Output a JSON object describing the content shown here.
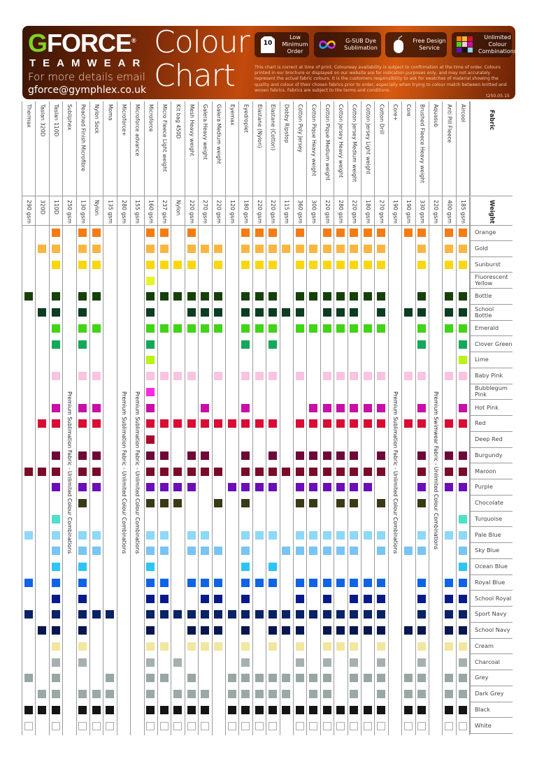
{
  "header": {
    "logo": {
      "g": "G",
      "rest": "FORCE",
      "reg": "®",
      "sub": "TEAMWEAR"
    },
    "email_label": "For more details email",
    "email": "gforce@gymphlex.co.uk",
    "title_line1": "Colour",
    "title_line2": "Chart",
    "features": [
      {
        "icon": "shirt-10-icon",
        "icon_text": "10",
        "label": "Low Minimum Order"
      },
      {
        "icon": "infinity-icon",
        "label": "G-SUB Dye Sublimation"
      },
      {
        "icon": "mouse-icon",
        "label": "Free Design Service"
      },
      {
        "icon": "colour-grid-icon",
        "label": "Unlimited Colour Combinations"
      }
    ],
    "disclaimer": "This chart is correct at time of print. Colourway availability is subject to confirmation at the time of order. Colours printed in our brochure or displayed on our website are for indication purposes only, and may not accurately represent the actual fabric colours. It is the customers responsibility to ask for swatches of material showing the quality and colour of their chosen fabrics prior to order, especially when trying to colour match between knitted and woven fabrics. Fabrics are subject to the terms and conditions.",
    "code": "t250.05.15"
  },
  "table": {
    "fabric_header": "Fabric",
    "weight_header": "Weight",
    "fabrics": [
      {
        "name": "Thermax",
        "weight": "290 gsm"
      },
      {
        "name": "Taslan 320D",
        "weight": "320D"
      },
      {
        "name": "Taslan 110D",
        "weight": "110D"
      },
      {
        "name": "Subliphex",
        "weight": "250 gsm",
        "premium": "Premium Sublimation Fabric - Unlimited Colour Combinations"
      },
      {
        "name": "Peached Finish Microfibre",
        "weight": "130 gsm"
      },
      {
        "name": "Nylon Sock",
        "weight": "Nylon"
      },
      {
        "name": "Moma",
        "weight": "135 gsm"
      },
      {
        "name": "Microforce+",
        "weight": "280 gsm",
        "premium": "Premium Sublimation Fabric - Unlimited Colour Combinations"
      },
      {
        "name": "Microforce advance",
        "weight": "155 gsm",
        "premium": "Premium Sublimation Fabric - Unlimited Colour Combinations"
      },
      {
        "name": "Microforce",
        "weight": "160 gsm"
      },
      {
        "name": "Micro Fleece Light weight",
        "weight": "237 gsm"
      },
      {
        "name": "Kit bag 450D",
        "weight": "Nylon"
      },
      {
        "name": "Mesh Heavy weight",
        "weight": "220 gsm"
      },
      {
        "name": "Galera Heavy weight",
        "weight": "270 gsm"
      },
      {
        "name": "Galera Medium weight",
        "weight": "220 gsm"
      },
      {
        "name": "Eyemax",
        "weight": "120 gsm"
      },
      {
        "name": "Eyedroplet",
        "weight": "180 gsm"
      },
      {
        "name": "Elastane (Nylon)",
        "weight": "220 gsm"
      },
      {
        "name": "Elastane (Cotton)",
        "weight": "220 gsm"
      },
      {
        "name": "Dobby Ripstop",
        "weight": "115 gsm"
      },
      {
        "name": "Cotton Poly Jersey",
        "weight": "360 gsm"
      },
      {
        "name": "Cotton Pique Heavy weight",
        "weight": "300 gsm"
      },
      {
        "name": "Cotton Pique Medium weight",
        "weight": "220 gsm"
      },
      {
        "name": "Cotton Jersey Heavy weight",
        "weight": "280 gsm"
      },
      {
        "name": "Cotton Jersey Medium weight",
        "weight": "220 gsm"
      },
      {
        "name": "Cotton Jersey Light weight",
        "weight": "180 gsm"
      },
      {
        "name": "Cotton Drill",
        "weight": "270 gsm"
      },
      {
        "name": "Core+",
        "weight": "190 gsm",
        "premium": "Premium Sublimation Fabric - Unlimited Colour Combinations"
      },
      {
        "name": "Core",
        "weight": "190 gsm"
      },
      {
        "name": "Brushed Fleece Heavy weight",
        "weight": "330 gsm"
      },
      {
        "name": "Aquasub",
        "weight": "220 gsm",
        "premium": "Premium Swimwear Fabric - Unlimited Colour Combinations"
      },
      {
        "name": "Anti Pill Fleece",
        "weight": "400 gsm"
      },
      {
        "name": "Aircool",
        "weight": "185 gsm"
      }
    ],
    "colours": [
      {
        "name": "Orange",
        "hex": "#f57c12",
        "fabrics": [
          2,
          4,
          5,
          9,
          10,
          12,
          16,
          17,
          18,
          20,
          22,
          23,
          24,
          25,
          26,
          28,
          29,
          31,
          32
        ]
      },
      {
        "name": "Gold",
        "hex": "#fbb640",
        "fabrics": [
          1,
          2,
          4,
          5,
          9,
          10,
          12,
          13,
          14,
          16,
          17,
          18,
          19,
          20,
          21,
          22,
          23,
          24,
          25,
          26,
          29,
          31,
          32
        ]
      },
      {
        "name": "Sunburst",
        "hex": "#fbd712",
        "fabrics": [
          2,
          4,
          5,
          9,
          10,
          11,
          12,
          14,
          16,
          17,
          18,
          20,
          21,
          22,
          23,
          24,
          25,
          26,
          29,
          31,
          32
        ]
      },
      {
        "name": "Fluorescent Yellow",
        "hex": "#e6f52a",
        "fabrics": [
          9
        ]
      },
      {
        "name": "Bottle",
        "hex": "#16400a",
        "fabrics": [
          0,
          2,
          4,
          5,
          9,
          10,
          11,
          12,
          13,
          14,
          16,
          17,
          18,
          20,
          21,
          22,
          23,
          24,
          25,
          26,
          29,
          31,
          32
        ]
      },
      {
        "name": "School Bottle",
        "hex": "#0b3d22",
        "fabrics": [
          1,
          2,
          4,
          9,
          12,
          13,
          14,
          16,
          17,
          18,
          19,
          20,
          22,
          23,
          24,
          26,
          28,
          29,
          31,
          32
        ]
      },
      {
        "name": "Emerald",
        "hex": "#42d416",
        "fabrics": [
          2,
          4,
          5,
          9,
          10,
          11,
          12,
          13,
          14,
          16,
          17,
          18,
          20,
          21,
          22,
          23,
          24,
          25,
          26,
          29,
          31,
          32
        ]
      },
      {
        "name": "Clover Green",
        "hex": "#14a85a",
        "fabrics": [
          2,
          4,
          9,
          16,
          18,
          29,
          32
        ]
      },
      {
        "name": "Lime",
        "hex": "#b8f514",
        "fabrics": [
          9,
          32
        ]
      },
      {
        "name": "Baby Pink",
        "hex": "#f9c4e0",
        "fabrics": [
          2,
          4,
          5,
          9,
          10,
          11,
          12,
          14,
          16,
          17,
          18,
          20,
          22,
          23,
          24,
          25,
          26,
          28,
          29,
          31,
          32
        ]
      },
      {
        "name": "Bubblegum Pink",
        "hex": "#f72ee0",
        "fabrics": [
          9
        ]
      },
      {
        "name": "Hot Pink",
        "hex": "#c80fa8",
        "fabrics": [
          2,
          4,
          5,
          9,
          13,
          16,
          21,
          22,
          23,
          24,
          25,
          26,
          29,
          32
        ]
      },
      {
        "name": "Red",
        "hex": "#d80c34",
        "fabrics": [
          1,
          2,
          4,
          5,
          9,
          10,
          11,
          12,
          13,
          14,
          15,
          16,
          17,
          18,
          20,
          21,
          22,
          23,
          24,
          25,
          26,
          28,
          29,
          31,
          32
        ]
      },
      {
        "name": "Deep Red",
        "hex": "#a8082c",
        "fabrics": [
          9
        ]
      },
      {
        "name": "Burgundy",
        "hex": "#6e0838",
        "fabrics": [
          2,
          4,
          5,
          9,
          10,
          12,
          13,
          16,
          18,
          20,
          21,
          22,
          23,
          24,
          26,
          29,
          31,
          32
        ]
      },
      {
        "name": "Maroon",
        "hex": "#7a0a2a",
        "fabrics": [
          0,
          1,
          2,
          4,
          5,
          9,
          10,
          11,
          12,
          13,
          14,
          16,
          17,
          18,
          19,
          20,
          21,
          22,
          23,
          24,
          25,
          26,
          29,
          31,
          32
        ]
      },
      {
        "name": "Purple",
        "hex": "#6a0fb8",
        "fabrics": [
          2,
          4,
          5,
          9,
          10,
          11,
          12,
          15,
          16,
          17,
          18,
          20,
          21,
          22,
          23,
          24,
          25,
          29,
          31,
          32
        ]
      },
      {
        "name": "Chocolate",
        "hex": "#3a3a16",
        "fabrics": [
          4,
          9,
          10,
          11,
          14,
          16,
          20,
          21,
          23,
          24,
          26,
          29
        ]
      },
      {
        "name": "Turquoise",
        "hex": "#4ee0c8",
        "fabrics": [
          2,
          32
        ]
      },
      {
        "name": "Pale Blue",
        "hex": "#8ed8f8",
        "fabrics": [
          0,
          2,
          4,
          5,
          9,
          10,
          12,
          13,
          16,
          17,
          18,
          20,
          21,
          22,
          23,
          24,
          25,
          26,
          29,
          31,
          32
        ]
      },
      {
        "name": "Sky Blue",
        "hex": "#78c4f5",
        "fabrics": [
          2,
          4,
          5,
          9,
          10,
          12,
          13,
          14,
          16,
          19,
          20,
          21,
          22,
          23,
          24,
          26,
          28,
          29,
          32
        ]
      },
      {
        "name": "Ocean Blue",
        "hex": "#2ec4f5",
        "fabrics": [
          2,
          4,
          9,
          16,
          18,
          32
        ]
      },
      {
        "name": "Royal Blue",
        "hex": "#0f64e6",
        "fabrics": [
          0,
          2,
          4,
          9,
          10,
          12,
          13,
          14,
          16,
          17,
          18,
          20,
          21,
          22,
          23,
          24,
          25,
          26,
          29,
          31,
          32
        ]
      },
      {
        "name": "School Royal",
        "hex": "#081a8a",
        "fabrics": [
          2,
          4,
          9,
          10,
          13,
          14,
          16,
          20,
          22,
          24,
          25,
          26,
          29,
          31,
          32
        ]
      },
      {
        "name": "Sport Navy",
        "hex": "#0a2266",
        "fabrics": [
          0,
          2,
          4,
          5,
          6,
          9,
          10,
          11,
          12,
          13,
          14,
          15,
          16,
          17,
          18,
          19,
          20,
          21,
          22,
          23,
          24,
          25,
          26,
          29,
          31,
          32
        ]
      },
      {
        "name": "School Navy",
        "hex": "#061650",
        "fabrics": [
          1,
          2,
          4,
          9,
          12,
          13,
          14,
          16,
          18,
          19,
          20,
          22,
          23,
          24,
          25,
          26,
          28,
          29,
          31,
          32
        ]
      },
      {
        "name": "Cream",
        "hex": "#f2e6a0",
        "fabrics": [
          2,
          4,
          9,
          10,
          12,
          13,
          14,
          16,
          18,
          20,
          22,
          23,
          24,
          26,
          29,
          31,
          32
        ]
      },
      {
        "name": "Charcoal",
        "hex": "#a6b0b0",
        "fabrics": [
          2,
          4,
          9,
          11,
          16,
          20,
          22,
          24,
          26,
          29,
          32
        ]
      },
      {
        "name": "Grey",
        "hex": "#98a6a6",
        "fabrics": [
          0,
          2,
          6,
          9,
          10,
          12,
          15,
          16,
          17,
          18,
          19,
          20,
          21,
          22,
          24,
          25,
          26,
          28,
          29,
          31,
          32
        ]
      },
      {
        "name": "Dark Grey",
        "hex": "#9aa8a8",
        "fabrics": [
          1,
          2,
          4,
          5,
          6,
          9,
          11,
          12,
          13,
          15,
          16,
          17,
          18,
          19,
          21,
          22,
          24,
          26,
          28,
          29,
          31,
          32
        ]
      },
      {
        "name": "Black",
        "hex": "#141414",
        "fabrics": [
          0,
          1,
          2,
          4,
          5,
          6,
          9,
          10,
          11,
          12,
          13,
          15,
          16,
          17,
          18,
          19,
          20,
          21,
          22,
          23,
          24,
          25,
          26,
          28,
          29,
          31,
          32
        ]
      },
      {
        "name": "White",
        "hex": "#ffffff",
        "fabrics": [
          0,
          2,
          4,
          5,
          6,
          9,
          10,
          11,
          12,
          13,
          15,
          16,
          17,
          18,
          20,
          21,
          22,
          23,
          24,
          25,
          26,
          28,
          29,
          31,
          32
        ]
      }
    ]
  }
}
